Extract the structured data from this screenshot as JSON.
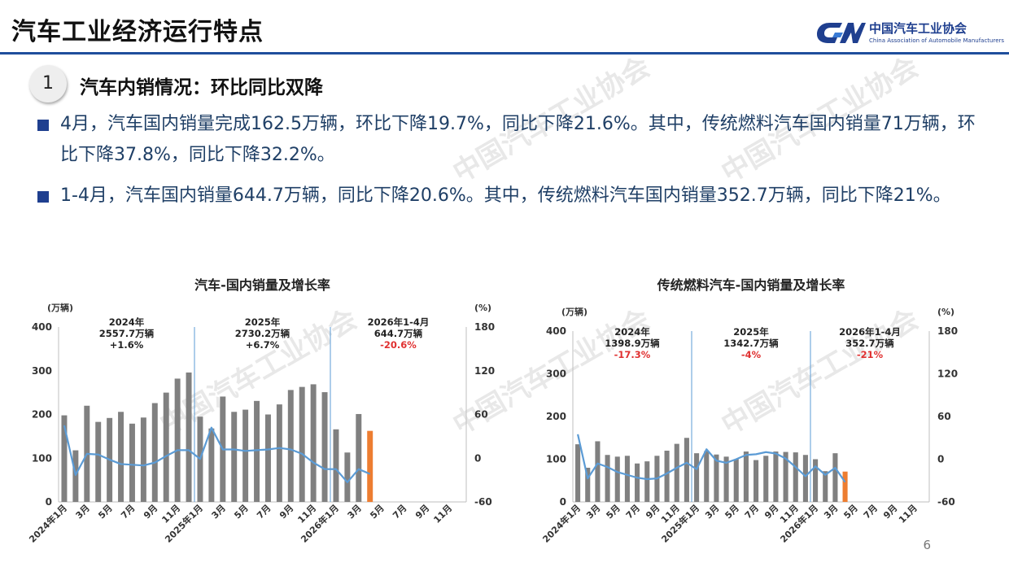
{
  "page": {
    "title": "汽车工业经济运行特点",
    "page_number": "6"
  },
  "logo": {
    "cn": "中国汽车工业协会",
    "en": "China Association of Automobile Manufacturers",
    "watermark": "中国汽车工业协会"
  },
  "section": {
    "number": "1",
    "title": "汽车内销情况：环比同比双降"
  },
  "bullets": [
    "4月，汽车国内销量完成162.5万辆，环比下降19.7%，同比下降21.6%。其中，传统燃料汽车国内销量71万辆，环比下降37.8%，同比下降32.2%。",
    "1-4月，汽车国内销量644.7万辆，同比下降20.6%。其中，传统燃料汽车国内销量352.7万辆，同比下降21%。"
  ],
  "colors": {
    "bar": "#808080",
    "highlight_bar": "#ed7d31",
    "line": "#5b9bd5",
    "divider": "#5b9bd5",
    "negative": "#e03030",
    "accent": "#1f3f8f"
  },
  "chart_data": [
    {
      "type": "bar",
      "title": "汽车-国内销量及增长率",
      "ylabel": "(万辆)",
      "y2label": "(%)",
      "ylim": [
        0,
        400
      ],
      "y2lim": [
        -60,
        180
      ],
      "yticks": [
        "0",
        "100",
        "200",
        "300",
        "400"
      ],
      "y2ticks": [
        "-60",
        "0",
        "60",
        "120",
        "180"
      ],
      "x_tick_labels": [
        "2024年1月",
        "3月",
        "5月",
        "7月",
        "9月",
        "11月",
        "2025年1月",
        "3月",
        "5月",
        "7月",
        "9月",
        "11月",
        "2026年1月",
        "3月",
        "5月",
        "7月",
        "9月",
        "11月"
      ],
      "categories_count": 36,
      "series": [
        {
          "name": "国内销量",
          "kind": "bar",
          "values": [
            198,
            118,
            220,
            183,
            192,
            206,
            179,
            193,
            226,
            250,
            282,
            296,
            195,
            168,
            241,
            206,
            211,
            231,
            200,
            223,
            256,
            263,
            269,
            251,
            166,
            113,
            201,
            162.5
          ]
        },
        {
          "name": "增长率",
          "kind": "line",
          "values": [
            45,
            -23,
            6,
            5,
            -2,
            -8,
            -9,
            -10,
            -6,
            3,
            11,
            11,
            -1,
            42,
            12,
            12,
            10,
            11,
            12,
            14,
            12,
            6,
            -6,
            -15,
            -15,
            -33,
            -15,
            -21.6
          ]
        }
      ],
      "highlight_index": 27,
      "annotations": [
        {
          "year": "2024年",
          "total": "2557.7万辆",
          "growth": "+1.6%"
        },
        {
          "year": "2025年",
          "total": "2730.2万辆",
          "growth": "+6.7%"
        },
        {
          "year": "2026年1-4月",
          "total": "644.7万辆",
          "growth": "-20.6%"
        }
      ],
      "legend": "none"
    },
    {
      "type": "bar",
      "title": "传统燃料汽车-国内销量及增长率",
      "ylabel": "(万辆)",
      "y2label": "(%)",
      "ylim": [
        0,
        400
      ],
      "y2lim": [
        -60,
        180
      ],
      "yticks": [
        "0",
        "100",
        "200",
        "300",
        "400"
      ],
      "y2ticks": [
        "-60",
        "0",
        "60",
        "120",
        "180"
      ],
      "x_tick_labels": [
        "2024年1月",
        "3月",
        "5月",
        "7月",
        "9月",
        "11月",
        "2025年1月",
        "3月",
        "5月",
        "7月",
        "9月",
        "11月",
        "2026年1月",
        "3月",
        "5月",
        "7月",
        "9月",
        "11月"
      ],
      "categories_count": 36,
      "series": [
        {
          "name": "国内销量",
          "kind": "bar",
          "values": [
            135,
            80,
            142,
            110,
            106,
            108,
            90,
            95,
            108,
            120,
            136,
            150,
            114,
            119,
            111,
            106,
            100,
            118,
            98,
            108,
            118,
            117,
            116,
            110,
            100,
            72,
            114,
            71
          ]
        },
        {
          "name": "增长率",
          "kind": "line",
          "values": [
            35,
            -27,
            -6,
            -11,
            -18,
            -22,
            -26,
            -28,
            -27,
            -20,
            -12,
            -5,
            -14,
            14,
            -2,
            -5,
            0,
            6,
            7,
            10,
            8,
            1,
            -11,
            -24,
            -10,
            -22,
            -12,
            -32.2
          ]
        }
      ],
      "highlight_index": 27,
      "annotations": [
        {
          "year": "2024年",
          "total": "1398.9万辆",
          "growth": "-17.3%"
        },
        {
          "year": "2025年",
          "total": "1342.7万辆",
          "growth": "-4%"
        },
        {
          "year": "2026年1-4月",
          "total": "352.7万辆",
          "growth": "-21%"
        }
      ],
      "legend": "none"
    }
  ]
}
